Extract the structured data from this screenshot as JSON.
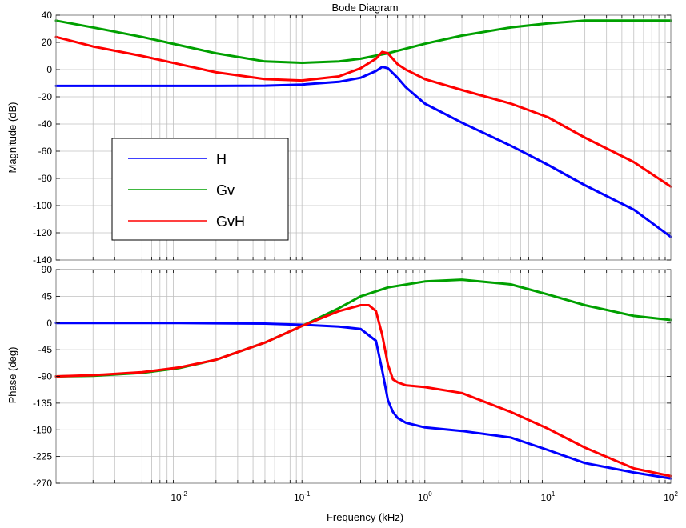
{
  "chart_data": [
    {
      "id": "magnitude",
      "type": "line",
      "title": "Bode Diagram",
      "xlabel": "Frequency (kHz)",
      "ylabel": "Magnitude (dB)",
      "xscale": "log",
      "xlim": [
        0.001,
        100
      ],
      "ylim": [
        -140,
        40
      ],
      "yticks": [
        40,
        20,
        0,
        -20,
        -40,
        -60,
        -80,
        -100,
        -120,
        -140
      ],
      "ytick_labels": [
        "40",
        "20",
        "0",
        "-20",
        "-40",
        "-60",
        "-80",
        "-100",
        "-120",
        "-140"
      ],
      "grid": true,
      "legend": {
        "position": "middle-left",
        "entries": [
          "H",
          "Gv",
          "GvH"
        ]
      },
      "series": [
        {
          "name": "H",
          "color": "#0000ff",
          "x": [
            0.001,
            0.003,
            0.01,
            0.02,
            0.05,
            0.1,
            0.2,
            0.3,
            0.4,
            0.45,
            0.5,
            0.6,
            0.7,
            1,
            2,
            5,
            10,
            20,
            50,
            100
          ],
          "y": [
            -12,
            -12,
            -12,
            -12,
            -11.8,
            -11,
            -9,
            -6,
            -1,
            2,
            1,
            -6,
            -13,
            -25,
            -39,
            -56,
            -70,
            -85,
            -103,
            -123
          ]
        },
        {
          "name": "Gv",
          "color": "#00a000",
          "x": [
            0.001,
            0.002,
            0.005,
            0.01,
            0.02,
            0.05,
            0.1,
            0.2,
            0.3,
            0.5,
            1,
            2,
            5,
            10,
            20,
            50,
            100
          ],
          "y": [
            36,
            31,
            24,
            18,
            12,
            6,
            5,
            6,
            8,
            12,
            19,
            25,
            31,
            34,
            36,
            36,
            36
          ]
        },
        {
          "name": "GvH",
          "color": "#ff0000",
          "x": [
            0.001,
            0.002,
            0.005,
            0.01,
            0.02,
            0.05,
            0.1,
            0.2,
            0.3,
            0.4,
            0.45,
            0.5,
            0.6,
            0.7,
            1,
            2,
            5,
            10,
            20,
            50,
            100
          ],
          "y": [
            24,
            17,
            10,
            4,
            -2,
            -7,
            -8,
            -5,
            1,
            8,
            13,
            12,
            4,
            0,
            -7,
            -15,
            -25,
            -35,
            -50,
            -68,
            -86
          ]
        }
      ]
    },
    {
      "id": "phase",
      "type": "line",
      "xlabel": "Frequency (kHz)",
      "ylabel": "Phase (deg)",
      "xscale": "log",
      "xlim": [
        0.001,
        100
      ],
      "ylim": [
        -270,
        90
      ],
      "yticks": [
        90,
        45,
        0,
        -45,
        -90,
        -135,
        -180,
        -225,
        -270
      ],
      "ytick_labels": [
        "90",
        "45",
        "0",
        "-45",
        "-90",
        "-135",
        "-180",
        "-225",
        "-270"
      ],
      "xticks": [
        0.01,
        0.1,
        1,
        10,
        100
      ],
      "xtick_labels": [
        {
          "base": "10",
          "exp": "-2"
        },
        {
          "base": "10",
          "exp": "-1"
        },
        {
          "base": "10",
          "exp": "0"
        },
        {
          "base": "10",
          "exp": "1"
        },
        {
          "base": "10",
          "exp": "2"
        }
      ],
      "grid": true,
      "series": [
        {
          "name": "H",
          "color": "#0000ff",
          "x": [
            0.001,
            0.01,
            0.05,
            0.1,
            0.2,
            0.3,
            0.4,
            0.45,
            0.5,
            0.55,
            0.6,
            0.7,
            1,
            2,
            5,
            10,
            20,
            50,
            100
          ],
          "y": [
            0,
            0,
            -1,
            -3,
            -6,
            -10,
            -30,
            -80,
            -130,
            -150,
            -160,
            -168,
            -176,
            -182,
            -193,
            -214,
            -236,
            -252,
            -262
          ]
        },
        {
          "name": "Gv",
          "color": "#00a000",
          "x": [
            0.001,
            0.002,
            0.005,
            0.01,
            0.02,
            0.05,
            0.1,
            0.2,
            0.3,
            0.5,
            1,
            2,
            5,
            10,
            20,
            50,
            100
          ],
          "y": [
            -90,
            -89,
            -84,
            -76,
            -62,
            -33,
            -5,
            25,
            45,
            60,
            70,
            73,
            65,
            48,
            30,
            12,
            5
          ]
        },
        {
          "name": "GvH",
          "color": "#ff0000",
          "x": [
            0.001,
            0.002,
            0.005,
            0.01,
            0.02,
            0.05,
            0.1,
            0.2,
            0.3,
            0.35,
            0.4,
            0.45,
            0.5,
            0.55,
            0.6,
            0.7,
            1,
            2,
            5,
            10,
            20,
            50,
            100
          ],
          "y": [
            -90,
            -88,
            -83,
            -75,
            -62,
            -33,
            -5,
            20,
            30,
            30,
            20,
            -20,
            -70,
            -95,
            -100,
            -105,
            -108,
            -118,
            -150,
            -178,
            -210,
            -245,
            -258
          ]
        }
      ]
    }
  ]
}
